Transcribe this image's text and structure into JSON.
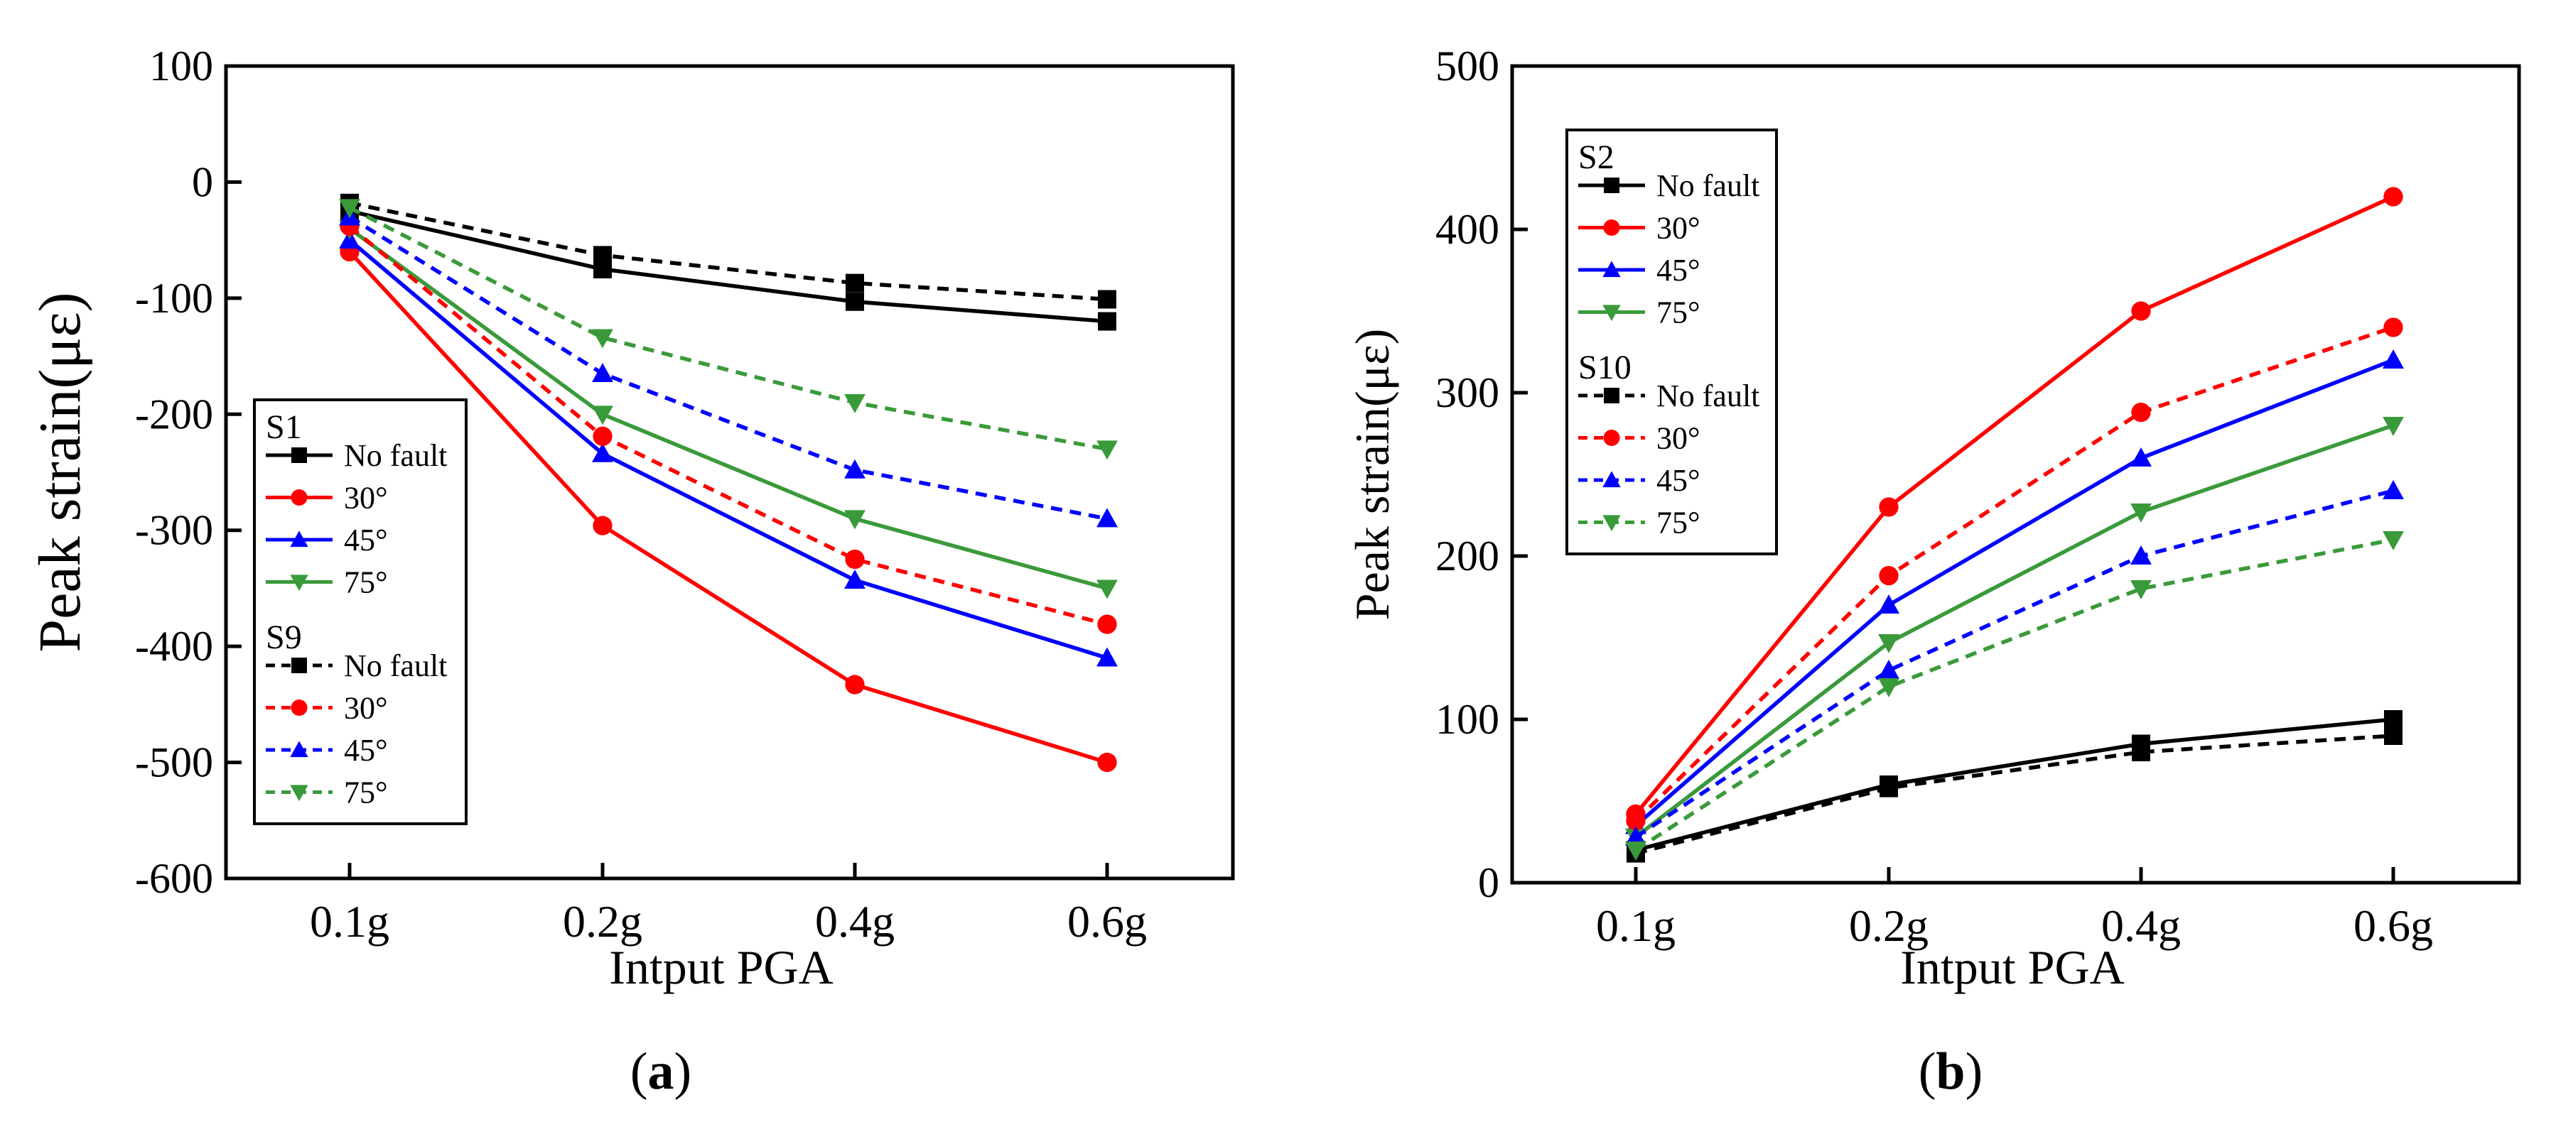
{
  "chart_data": [
    {
      "type": "line",
      "panel": "a",
      "panel_label": "a",
      "xlabel": "Intput PGA",
      "ylabel": "Peak strain(με)",
      "categories": [
        "0.1g",
        "0.2g",
        "0.4g",
        "0.6g"
      ],
      "ylim": [
        -600,
        100
      ],
      "yticks": [
        "100",
        "0",
        "-100",
        "-200",
        "-300",
        "-400",
        "-500",
        "-600"
      ],
      "ytick_values": [
        100,
        0,
        -100,
        -200,
        -300,
        -400,
        -500,
        -600
      ],
      "legend_position": "lower-left",
      "groups": [
        {
          "title": "S1",
          "dashed": false,
          "series": [
            {
              "name": "No fault",
              "color": "#000000",
              "marker": "square",
              "values": [
                -25,
                -75,
                -103,
                -120
              ]
            },
            {
              "name": "30°",
              "color": "#ff0000",
              "marker": "circle",
              "values": [
                -60,
                -296,
                -433,
                -500
              ]
            },
            {
              "name": "45°",
              "color": "#0000ff",
              "marker": "triangle-up",
              "values": [
                -50,
                -234,
                -343,
                -410
              ]
            },
            {
              "name": "75°",
              "color": "#3a9a3a",
              "marker": "triangle-down",
              "values": [
                -40,
                -200,
                -290,
                -350
              ]
            }
          ]
        },
        {
          "title": "S9",
          "dashed": true,
          "series": [
            {
              "name": "No fault",
              "color": "#000000",
              "marker": "square",
              "values": [
                -18,
                -63,
                -87,
                -101
              ]
            },
            {
              "name": "30°",
              "color": "#ff0000",
              "marker": "circle",
              "values": [
                -38,
                -219,
                -325,
                -381
              ]
            },
            {
              "name": "45°",
              "color": "#0000ff",
              "marker": "triangle-up",
              "values": [
                -30,
                -165,
                -248,
                -290
              ]
            },
            {
              "name": "75°",
              "color": "#3a9a3a",
              "marker": "triangle-down",
              "values": [
                -22,
                -134,
                -190,
                -230
              ]
            }
          ]
        }
      ]
    },
    {
      "type": "line",
      "panel": "b",
      "panel_label": "b",
      "xlabel": "Intput PGA",
      "ylabel": "Peak strain(με)",
      "categories": [
        "0.1g",
        "0.2g",
        "0.4g",
        "0.6g"
      ],
      "ylim": [
        0,
        500
      ],
      "yticks": [
        "500",
        "400",
        "300",
        "200",
        "100",
        "0"
      ],
      "ytick_values": [
        500,
        400,
        300,
        200,
        100,
        0
      ],
      "legend_position": "upper-left",
      "groups": [
        {
          "title": "S2",
          "dashed": false,
          "series": [
            {
              "name": "No fault",
              "color": "#000000",
              "marker": "square",
              "values": [
                20,
                60,
                85,
                100
              ]
            },
            {
              "name": "30°",
              "color": "#ff0000",
              "marker": "circle",
              "values": [
                42,
                230,
                350,
                420
              ]
            },
            {
              "name": "45°",
              "color": "#0000ff",
              "marker": "triangle-up",
              "values": [
                35,
                170,
                260,
                320
              ]
            },
            {
              "name": "75°",
              "color": "#3a9a3a",
              "marker": "triangle-down",
              "values": [
                28,
                147,
                227,
                280
              ]
            }
          ]
        },
        {
          "title": "S10",
          "dashed": true,
          "series": [
            {
              "name": "No fault",
              "color": "#000000",
              "marker": "square",
              "values": [
                18,
                58,
                80,
                90
              ]
            },
            {
              "name": "30°",
              "color": "#ff0000",
              "marker": "circle",
              "values": [
                38,
                188,
                288,
                340
              ]
            },
            {
              "name": "45°",
              "color": "#0000ff",
              "marker": "triangle-up",
              "values": [
                28,
                130,
                200,
                240
              ]
            },
            {
              "name": "75°",
              "color": "#3a9a3a",
              "marker": "triangle-down",
              "values": [
                20,
                120,
                180,
                210
              ]
            }
          ]
        }
      ]
    }
  ]
}
